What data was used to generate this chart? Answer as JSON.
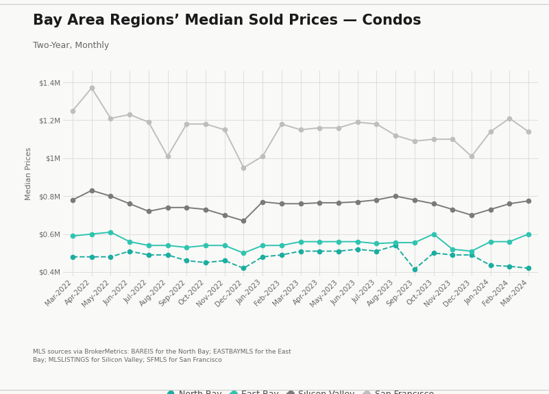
{
  "title": "Bay Area Regions’ Median Sold Prices — Condos",
  "subtitle": "Two-Year, Monthly",
  "ylabel": "Median Prices",
  "footnote": "MLS sources via BrokerMetrics: BAREIS for the North Bay; EASTBAYMLS for the East\nBay; MLSLISTINGS for Silicon Valley; SFMLS for San Francisco",
  "months": [
    "Mar-2022",
    "Apr-2022",
    "May-2022",
    "Jun-2022",
    "Jul-2022",
    "Aug-2022",
    "Sep-2022",
    "Oct-2022",
    "Nov-2022",
    "Dec-2022",
    "Jan-2023",
    "Feb-2023",
    "Mar-2023",
    "Apr-2023",
    "May-2023",
    "Jun-2023",
    "Jul-2023",
    "Aug-2023",
    "Sep-2023",
    "Oct-2023",
    "Nov-2023",
    "Dec-2023",
    "Jan-2024",
    "Feb-2024",
    "Mar-2024"
  ],
  "north_bay": [
    480000,
    480000,
    480000,
    510000,
    490000,
    490000,
    460000,
    450000,
    460000,
    420000,
    480000,
    490000,
    510000,
    510000,
    510000,
    520000,
    510000,
    540000,
    415000,
    500000,
    490000,
    490000,
    435000,
    430000,
    420000
  ],
  "east_bay": [
    590000,
    600000,
    610000,
    560000,
    540000,
    540000,
    530000,
    540000,
    540000,
    500000,
    540000,
    540000,
    560000,
    560000,
    560000,
    560000,
    550000,
    555000,
    555000,
    600000,
    520000,
    510000,
    560000,
    560000,
    600000
  ],
  "silicon_valley": [
    780000,
    830000,
    800000,
    760000,
    720000,
    740000,
    740000,
    730000,
    700000,
    670000,
    770000,
    760000,
    760000,
    765000,
    765000,
    770000,
    780000,
    800000,
    780000,
    760000,
    730000,
    700000,
    730000,
    760000,
    775000
  ],
  "san_francisco": [
    1250000,
    1370000,
    1210000,
    1230000,
    1190000,
    1010000,
    1180000,
    1180000,
    1150000,
    950000,
    1010000,
    1180000,
    1150000,
    1160000,
    1160000,
    1190000,
    1180000,
    1120000,
    1090000,
    1100000,
    1100000,
    1010000,
    1140000,
    1210000,
    1140000
  ],
  "north_bay_color": "#1aada0",
  "east_bay_color": "#2ec4b0",
  "silicon_valley_color": "#7a7a7a",
  "san_francisco_color": "#bebebe",
  "ylim": [
    380000,
    1460000
  ],
  "yticks": [
    400000,
    600000,
    800000,
    1000000,
    1200000,
    1400000
  ],
  "ytick_labels": [
    "$0.4M",
    "$0.6M",
    "$0.8M",
    "$1M",
    "$1.2M",
    "$1.4M"
  ],
  "background_color": "#f9f9f7",
  "plot_bg_color": "#f9f9f7",
  "grid_color": "#d8d8d8",
  "title_fontsize": 15,
  "subtitle_fontsize": 9,
  "axis_label_fontsize": 8,
  "tick_fontsize": 7.5,
  "legend_fontsize": 9,
  "footnote_fontsize": 6.5
}
